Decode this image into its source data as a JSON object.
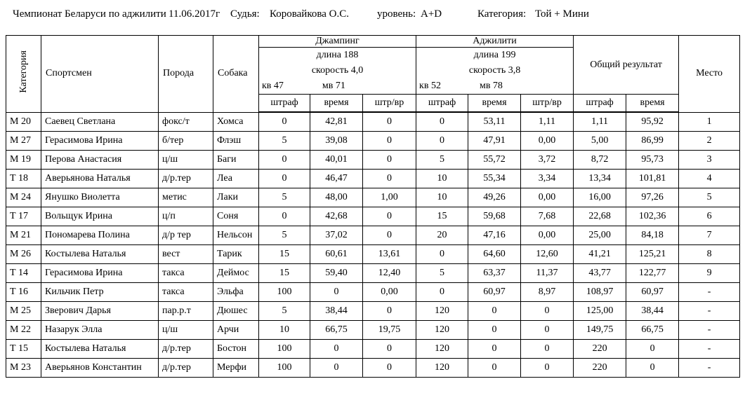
{
  "caption": {
    "competition": "Чемпионат Беларуси по аджилити",
    "date": "11.06.2017г",
    "judge_label": "Судья:",
    "judge": "Коровайкова О.С.",
    "level_label": "уровень:",
    "level": "A+D",
    "category_label": "Категория:",
    "category": "Той + Мини"
  },
  "table": {
    "headers": {
      "category": "Категория",
      "athlete": "Спортсмен",
      "breed": "Порода",
      "dog": "Собака",
      "jumping": {
        "title": "Джампинг",
        "length": "длина 188",
        "speed": "скорость 4,0",
        "kv": "кв 47",
        "mv": "мв  71"
      },
      "agility": {
        "title": "Аджилити",
        "length": "длина  199",
        "speed": "скорость  3,8",
        "kv": "кв 52",
        "mv": "мв  78"
      },
      "total": "Общий результат",
      "place": "Место",
      "sub": [
        "штраф",
        "время",
        "штр/вр",
        "штраф",
        "время",
        "штр/вр",
        "штраф",
        "время"
      ]
    },
    "column_names": [
      "category",
      "athlete",
      "breed",
      "dog",
      "jump-penalty",
      "jump-time",
      "jump-pen-time",
      "agility-penalty",
      "agility-time",
      "agility-pen-time",
      "total-penalty",
      "total-time",
      "place"
    ],
    "rows": [
      [
        "М 20",
        "Саевец Светлана",
        "фокс/т",
        "Хомса",
        "0",
        "42,81",
        "0",
        "0",
        "53,11",
        "1,11",
        "1,11",
        "95,92",
        "1"
      ],
      [
        "М 27",
        "Герасимова Ирина",
        "б/тер",
        "Флэш",
        "5",
        "39,08",
        "0",
        "0",
        "47,91",
        "0,00",
        "5,00",
        "86,99",
        "2"
      ],
      [
        "М 19",
        "Перова Анастасия",
        "ц/ш",
        "Баги",
        "0",
        "40,01",
        "0",
        "5",
        "55,72",
        "3,72",
        "8,72",
        "95,73",
        "3"
      ],
      [
        "Т 18",
        "Аверьянова Наталья",
        "д/р.тер",
        "Леа",
        "0",
        "46,47",
        "0",
        "10",
        "55,34",
        "3,34",
        "13,34",
        "101,81",
        "4"
      ],
      [
        "М 24",
        "Янушко Виолетта",
        "метис",
        "Лаки",
        "5",
        "48,00",
        "1,00",
        "10",
        "49,26",
        "0,00",
        "16,00",
        "97,26",
        "5"
      ],
      [
        "Т 17",
        "Вольщук Ирина",
        "ц/п",
        "Соня",
        "0",
        "42,68",
        "0",
        "15",
        "59,68",
        "7,68",
        "22,68",
        "102,36",
        "6"
      ],
      [
        "М 21",
        "Пономарева Полина",
        "д/р тер",
        "Нельсон",
        "5",
        "37,02",
        "0",
        "20",
        "47,16",
        "0,00",
        "25,00",
        "84,18",
        "7"
      ],
      [
        "М 26",
        "Костылева Наталья",
        "вест",
        "Тарик",
        "15",
        "60,61",
        "13,61",
        "0",
        "64,60",
        "12,60",
        "41,21",
        "125,21",
        "8"
      ],
      [
        "Т 14",
        "Герасимова Ирина",
        "такса",
        "Деймос",
        "15",
        "59,40",
        "12,40",
        "5",
        "63,37",
        "11,37",
        "43,77",
        "122,77",
        "9"
      ],
      [
        "Т 16",
        "Кильчик Петр",
        "такса",
        "Эльфа",
        "100",
        "0",
        "0,00",
        "0",
        "60,97",
        "8,97",
        "108,97",
        "60,97",
        "-"
      ],
      [
        "М 25",
        "Зверович Дарья",
        "пар.р.т",
        "Дюшес",
        "5",
        "38,44",
        "0",
        "120",
        "0",
        "0",
        "125,00",
        "38,44",
        "-"
      ],
      [
        "М 22",
        "Назарук Элла",
        "ц/ш",
        "Арчи",
        "10",
        "66,75",
        "19,75",
        "120",
        "0",
        "0",
        "149,75",
        "66,75",
        "-"
      ],
      [
        "Т 15",
        "Костылева Наталья",
        "д/р.тер",
        "Бостон",
        "100",
        "0",
        "0",
        "120",
        "0",
        "0",
        "220",
        "0",
        "-"
      ],
      [
        "М 23",
        "Аверьянов Константин",
        "д/р.тер",
        "Мерфи",
        "100",
        "0",
        "0",
        "120",
        "0",
        "0",
        "220",
        "0",
        "-"
      ]
    ]
  }
}
